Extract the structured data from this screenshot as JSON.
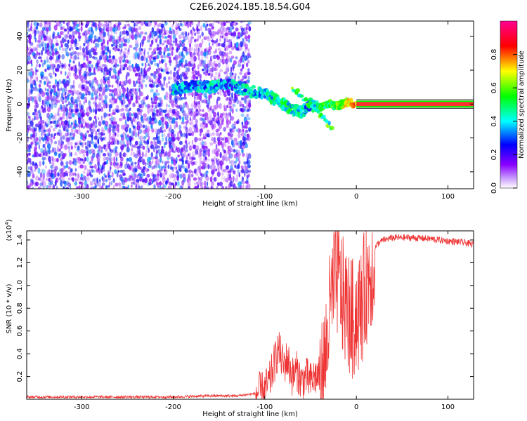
{
  "title": "C2E6.2024.185.18.54.G04",
  "chart_data": [
    {
      "type": "heatmap",
      "title": "C2E6.2024.185.18.54.G04",
      "xlabel": "Height of straight line (km)",
      "ylabel": "Frequency (Hz)",
      "xlim": [
        -360,
        128
      ],
      "ylim": [
        -50,
        49
      ],
      "x_ticks": [
        -300,
        -200,
        -100,
        0,
        100
      ],
      "y_ticks": [
        -40,
        -20,
        0,
        20,
        40
      ],
      "colorbar": {
        "label": "Normalized spectral amplitude",
        "range": [
          0,
          1
        ],
        "ticks": [
          0.0,
          0.2,
          0.4,
          0.6,
          0.8
        ],
        "colors": [
          "#ffffff",
          "#8a00ff",
          "#0000ff",
          "#00ffff",
          "#00ff00",
          "#ffff00",
          "#ff0000",
          "#ff0090"
        ]
      },
      "noise_region": {
        "x": [
          -360,
          -118
        ],
        "frequency": [
          -50,
          49
        ],
        "amplitude": [
          0.05,
          0.35
        ]
      },
      "signal_track": [
        {
          "x": -200,
          "f": 9,
          "a": 0.5
        },
        {
          "x": -180,
          "f": 10,
          "a": 0.45
        },
        {
          "x": -160,
          "f": 10,
          "a": 0.5
        },
        {
          "x": -140,
          "f": 12,
          "a": 0.45
        },
        {
          "x": -120,
          "f": 8,
          "a": 0.5
        },
        {
          "x": -100,
          "f": 6,
          "a": 0.5
        },
        {
          "x": -90,
          "f": 3,
          "a": 0.55
        },
        {
          "x": -80,
          "f": 0,
          "a": 0.6
        },
        {
          "x": -70,
          "f": -3,
          "a": 0.55
        },
        {
          "x": -60,
          "f": -5,
          "a": 0.5
        },
        {
          "x": -50,
          "f": 0,
          "a": 0.5
        },
        {
          "x": -40,
          "f": -2,
          "a": 0.6
        },
        {
          "x": -30,
          "f": 0,
          "a": 0.65
        },
        {
          "x": -20,
          "f": -1,
          "a": 0.7
        },
        {
          "x": -10,
          "f": 1,
          "a": 0.8
        },
        {
          "x": 0,
          "f": 0,
          "a": 0.9
        },
        {
          "x": 128,
          "f": 0,
          "a": 0.9
        }
      ]
    },
    {
      "type": "line",
      "xlabel": "Height of straight line (km)",
      "ylabel": "SNR (10 * v/v)",
      "scale_label": "(x10",
      "scale_exp": "4",
      "scale_close": ")",
      "xlim": [
        -360,
        128
      ],
      "ylim": [
        0,
        1.48
      ],
      "x_ticks": [
        -300,
        -200,
        -100,
        0,
        100
      ],
      "y_ticks": [
        0.2,
        0.4,
        0.6,
        0.8,
        1.0,
        1.2,
        1.4
      ],
      "series": [
        {
          "color": "#ee3333",
          "points": [
            [
              -360,
              0.02
            ],
            [
              -300,
              0.02
            ],
            [
              -250,
              0.02
            ],
            [
              -200,
              0.02
            ],
            [
              -160,
              0.03
            ],
            [
              -130,
              0.03
            ],
            [
              -110,
              0.05
            ],
            [
              -100,
              0.08
            ],
            [
              -95,
              0.15
            ],
            [
              -90,
              0.3
            ],
            [
              -85,
              0.45
            ],
            [
              -80,
              0.3
            ],
            [
              -75,
              0.35
            ],
            [
              -70,
              0.2
            ],
            [
              -65,
              0.25
            ],
            [
              -60,
              0.15
            ],
            [
              -55,
              0.2
            ],
            [
              -50,
              0.15
            ],
            [
              -45,
              0.2
            ],
            [
              -40,
              0.2
            ],
            [
              -35,
              0.4
            ],
            [
              -30,
              0.8
            ],
            [
              -25,
              1.1
            ],
            [
              -20,
              1.2
            ],
            [
              -15,
              1.0
            ],
            [
              -10,
              0.9
            ],
            [
              -5,
              0.8
            ],
            [
              0,
              0.85
            ],
            [
              5,
              0.9
            ],
            [
              10,
              1.1
            ],
            [
              15,
              1.25
            ],
            [
              20,
              1.33
            ],
            [
              25,
              1.38
            ],
            [
              30,
              1.4
            ],
            [
              40,
              1.42
            ],
            [
              60,
              1.42
            ],
            [
              80,
              1.41
            ],
            [
              100,
              1.39
            ],
            [
              115,
              1.38
            ],
            [
              128,
              1.36
            ]
          ]
        }
      ]
    }
  ]
}
